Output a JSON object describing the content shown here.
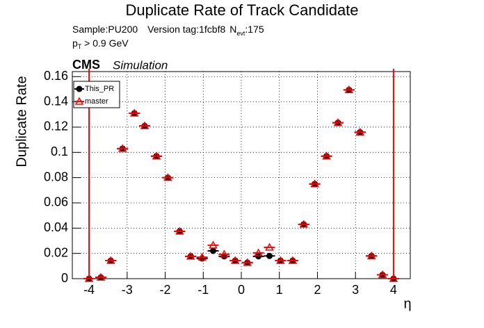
{
  "chart_data": {
    "type": "scatter",
    "title": "Duplicate Rate of Track Candidate",
    "sample": "Sample:PU200",
    "version": "Version tag:1fcbf8",
    "n_label": "N",
    "n_sub": "evt",
    "n_value": ":175",
    "cut_p": "p",
    "cut_sub": "T",
    "cut_rest": " > 0.9 GeV",
    "experiment": "CMS",
    "experiment_tag": "Simulation",
    "y_label": "Duplicate Rate",
    "x_label": "η",
    "x": [
      -4.0,
      -3.69,
      -3.43,
      -3.12,
      -2.81,
      -2.54,
      -2.23,
      -1.93,
      -1.62,
      -1.33,
      -1.03,
      -0.74,
      -0.45,
      -0.16,
      0.16,
      0.45,
      0.74,
      1.03,
      1.35,
      1.64,
      1.93,
      2.24,
      2.54,
      2.83,
      3.12,
      3.42,
      3.71,
      4.0
    ],
    "series": [
      {
        "name": "This_PR",
        "color": "#000000",
        "values": [
          0,
          0.001,
          0.0143,
          0.103,
          0.131,
          0.121,
          0.097,
          0.08,
          0.0375,
          0.0177,
          0.016,
          0.022,
          0.0177,
          0.0143,
          0.0127,
          0.0177,
          0.018,
          0.0143,
          0.0143,
          0.043,
          0.075,
          0.097,
          0.1235,
          0.1495,
          0.116,
          0.018,
          0.003,
          0
        ]
      },
      {
        "name": "master",
        "color": "#ff0000",
        "values": [
          0,
          0.001,
          0.0143,
          0.103,
          0.131,
          0.121,
          0.097,
          0.08,
          0.0375,
          0.0177,
          0.017,
          0.0265,
          0.0193,
          0.0143,
          0.0127,
          0.0204,
          0.0248,
          0.0143,
          0.0143,
          0.043,
          0.075,
          0.097,
          0.1235,
          0.1495,
          0.116,
          0.018,
          0.003,
          0
        ]
      }
    ],
    "xlim": [
      -4.44,
      4.44
    ],
    "xticks": [
      -4,
      -3,
      -2,
      -1,
      0,
      1,
      2,
      3,
      4
    ],
    "ylim": [
      0,
      0.164
    ],
    "yticks": [
      0,
      0.02,
      0.04,
      0.06,
      0.08,
      0.1,
      0.12,
      0.14,
      0.16
    ],
    "grid": true
  }
}
